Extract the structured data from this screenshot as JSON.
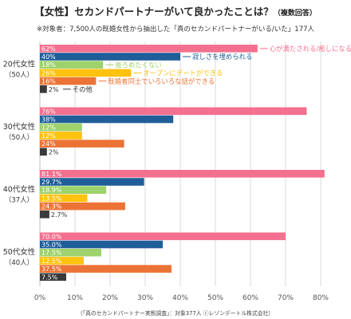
{
  "header": {
    "title": "【女性】セカンドパートナーがいて良かったことは？",
    "title_note": "（複数回答）",
    "subtitle": "※対象者：7,500人の既婚女性から抽出した「真のセカンドパートナーがいる/いた」177人"
  },
  "footer": {
    "source": "（「真のセカンドパートナー実態調査」：対象377人 ⓒレゾンデートル株式会社）"
  },
  "chart_data": {
    "type": "bar",
    "orientation": "horizontal",
    "xlim": [
      0,
      80
    ],
    "x_ticks": [
      "0%",
      "10%",
      "20%",
      "30%",
      "40%",
      "50%",
      "60%",
      "70%",
      "80%"
    ],
    "grid": true,
    "groups": [
      {
        "name": "20代女性",
        "n": "（50人）"
      },
      {
        "name": "30代女性",
        "n": "（50人）"
      },
      {
        "name": "40代女性",
        "n": "（37人）"
      },
      {
        "name": "50代女性",
        "n": "（40人）"
      }
    ],
    "series": [
      {
        "name": "心が満たされる/癒しになる",
        "color": "#f4708f",
        "text_color": "#ffffff",
        "values": [
          62,
          76,
          81.1,
          70.0
        ],
        "labels": [
          "62%",
          "76%",
          "81.1%",
          "70.0%"
        ]
      },
      {
        "name": "寂しさを埋められる",
        "color": "#1f5e99",
        "text_color": "#ffffff",
        "values": [
          40,
          38,
          29.7,
          35.0
        ],
        "labels": [
          "40%",
          "38%",
          "29.7%",
          "35.0%"
        ]
      },
      {
        "name": "後ろめたくない",
        "color": "#9dd26c",
        "text_color": "#ffffff",
        "values": [
          18,
          12,
          18.9,
          17.5
        ],
        "labels": [
          "18%",
          "12%",
          "18.9%",
          "17.5%"
        ]
      },
      {
        "name": "オープンにデートができる",
        "color": "#ffc20e",
        "text_color": "#ffffff",
        "values": [
          26,
          12,
          13.5,
          12.5
        ],
        "labels": [
          "26%",
          "12%",
          "13.5%",
          "12.5%"
        ]
      },
      {
        "name": "既婚者同士でいろいろな話ができる",
        "color": "#ec7336",
        "text_color": "#ffffff",
        "values": [
          16,
          24,
          24.3,
          37.5
        ],
        "labels": [
          "16%",
          "24%",
          "24.3%",
          "37.5%"
        ]
      },
      {
        "name": "その他",
        "color": "#3a3a3a",
        "text_color": "#ffffff",
        "values": [
          2,
          2,
          2.7,
          7.5
        ],
        "labels": [
          "2%",
          "2%",
          "2.7%",
          "7.5%"
        ]
      }
    ]
  }
}
